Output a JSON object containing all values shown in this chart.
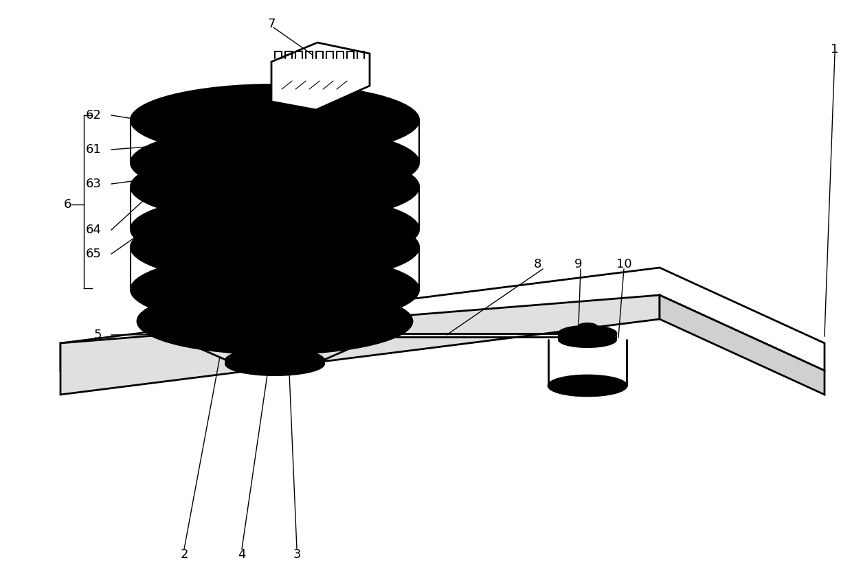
{
  "fig_width": 12.4,
  "fig_height": 8.51,
  "dpi": 100,
  "background_color": "#ffffff",
  "line_color": "#000000",
  "lw": 1.5,
  "lw2": 2.0
}
